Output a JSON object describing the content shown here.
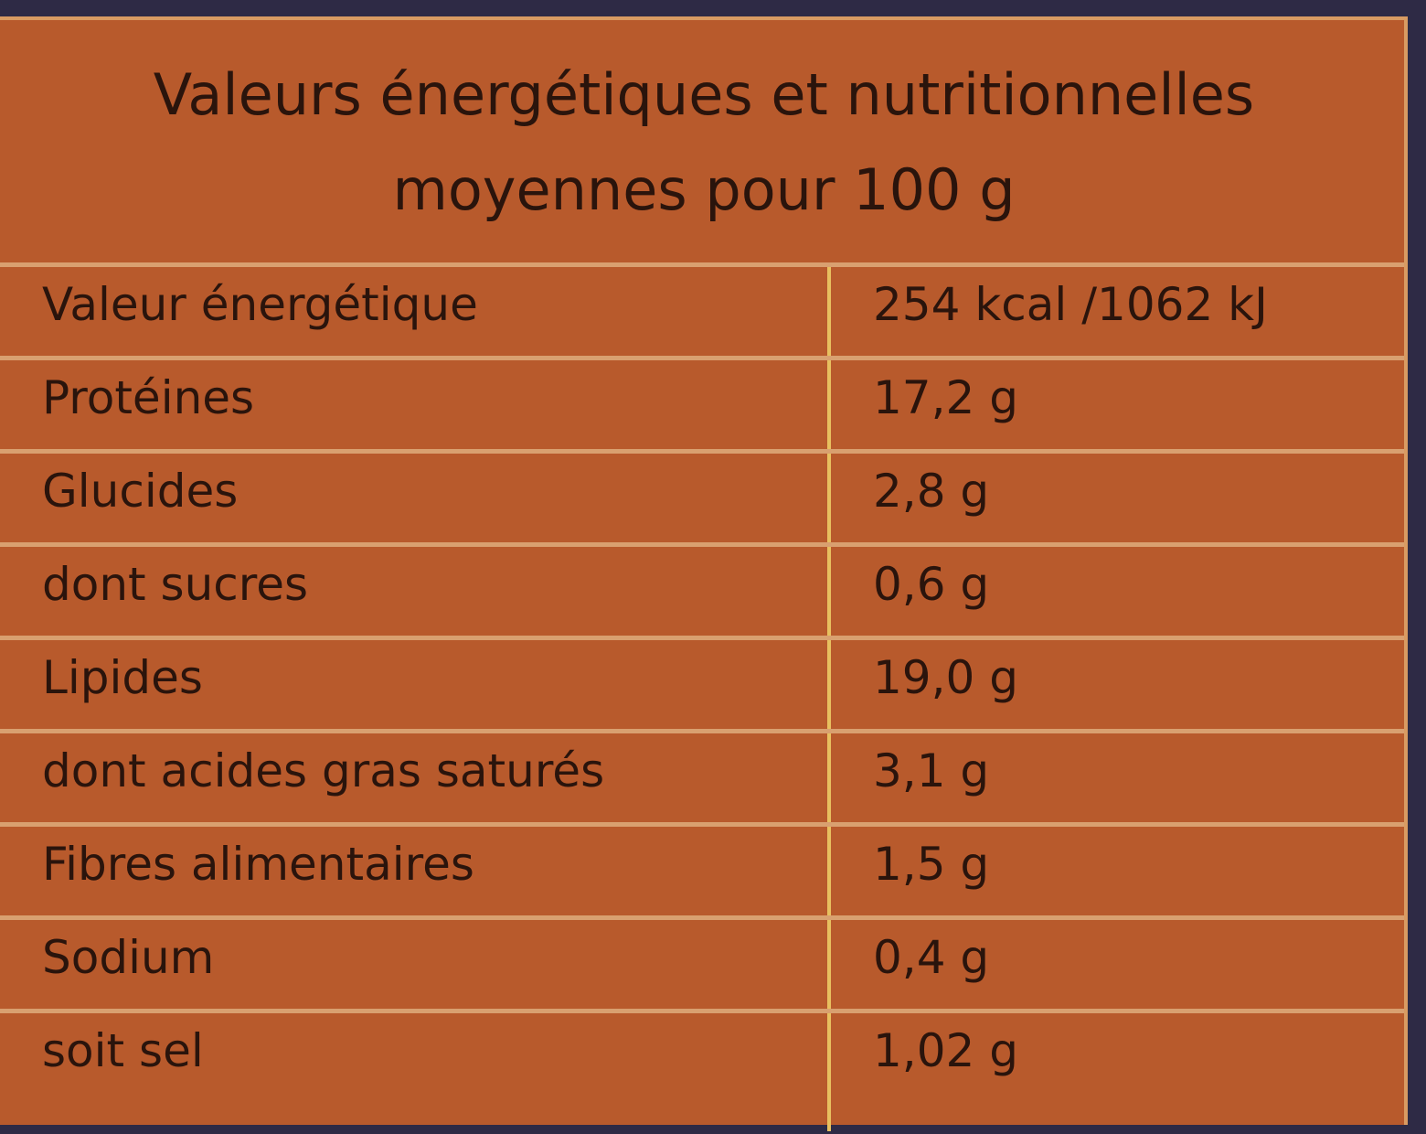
{
  "header": {
    "title_line1": "Valeurs énergétiques et nutritionnelles",
    "title_line2": "moyennes pour 100 g"
  },
  "table": {
    "rows": [
      [
        "Valeur énergétique",
        "254 kcal /1062 kJ"
      ],
      [
        "Protéines",
        "17,2 g"
      ],
      [
        "Glucides",
        "2,8 g"
      ],
      [
        "dont sucres",
        "0,6 g"
      ],
      [
        "Lipides",
        "19,0 g"
      ],
      [
        "dont acides gras saturés",
        "3,1 g"
      ],
      [
        "Fibres alimentaires",
        "1,5 g"
      ],
      [
        "Sodium",
        "0,4 g"
      ],
      [
        "soit sel",
        "1,02 g"
      ]
    ]
  }
}
